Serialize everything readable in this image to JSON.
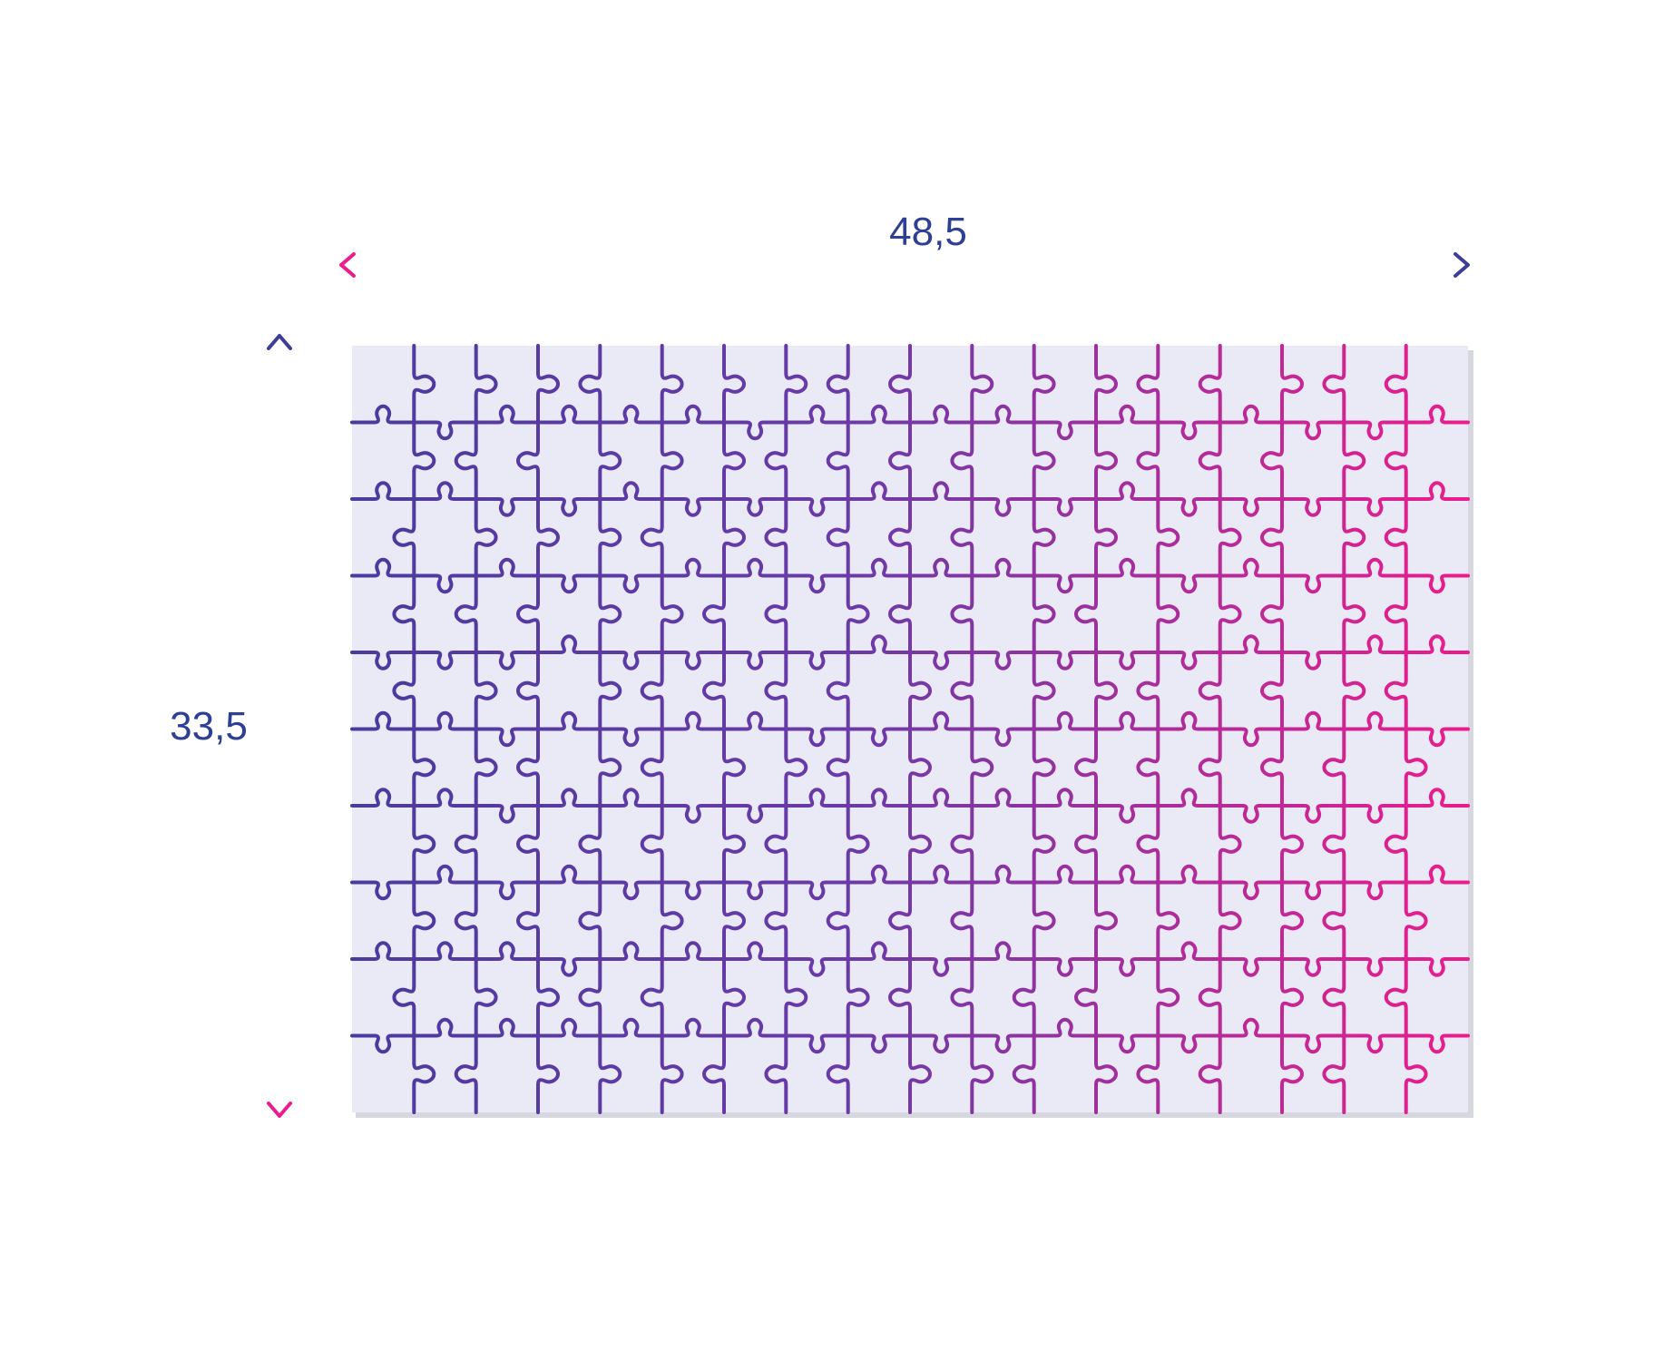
{
  "dimensions": {
    "width_label": "48,5",
    "height_label": "33,5"
  },
  "puzzle": {
    "columns": 18,
    "rows": 10,
    "colors": {
      "background": "#e9eaf6",
      "shadow": "#d6d7df",
      "primary": "#4b3a9e",
      "accent": "#ec1c8c",
      "label": "#2e3f96"
    }
  }
}
